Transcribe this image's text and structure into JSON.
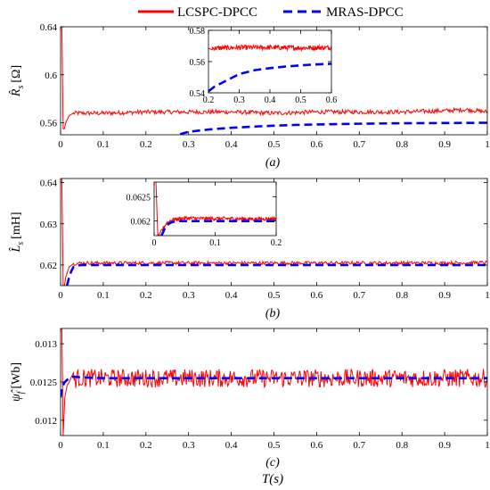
{
  "legend": {
    "entries": [
      {
        "label": "LCSPC-DPCC",
        "color": "#ff0000",
        "style": "solid"
      },
      {
        "label": "MRAS-DPCC",
        "color": "#0000ff",
        "style": "dashed"
      }
    ]
  },
  "xlabel": "T(s)",
  "chart_data": [
    {
      "type": "line",
      "panel": "(a)",
      "ylabel": "R̂s [Ω]",
      "ylabel_base": "R",
      "ylabel_sub": "s",
      "ylabel_unit": "[Ω]",
      "xlim": [
        0,
        1
      ],
      "ylim": [
        0.55,
        0.64
      ],
      "xticks": [
        0,
        0.1,
        0.2,
        0.3,
        0.4,
        0.5,
        0.6,
        0.7,
        0.8,
        0.9,
        1
      ],
      "xticklabels": [
        "0",
        "0.1",
        "0.2",
        "0.3",
        "0.4",
        "0.5",
        "0.6",
        "0.7",
        "0.8",
        "0.9",
        "1"
      ],
      "yticks": [
        0.56,
        0.6,
        0.64
      ],
      "yticklabels": [
        "0.56",
        "0.6",
        "0.64"
      ],
      "series": [
        {
          "name": "LCSPC-DPCC",
          "x": [
            0,
            0.003,
            0.006,
            0.009,
            0.012,
            0.02,
            0.03,
            0.05,
            0.1,
            0.2,
            0.3,
            0.4,
            0.5,
            0.6,
            0.7,
            0.8,
            0.9,
            0.95,
            1.0
          ],
          "y": [
            0.64,
            0.64,
            0.555,
            0.555,
            0.56,
            0.566,
            0.568,
            0.568,
            0.568,
            0.569,
            0.569,
            0.569,
            0.568,
            0.569,
            0.569,
            0.569,
            0.57,
            0.571,
            0.569
          ],
          "noise": 0.0018
        },
        {
          "name": "MRAS-DPCC",
          "x": [
            0.28,
            0.3,
            0.35,
            0.4,
            0.45,
            0.5,
            0.55,
            0.6,
            0.7,
            0.8,
            0.9,
            1.0
          ],
          "y": [
            0.5505,
            0.5525,
            0.5545,
            0.5558,
            0.5568,
            0.5576,
            0.5582,
            0.5586,
            0.5592,
            0.5596,
            0.5598,
            0.56
          ]
        }
      ],
      "inset": {
        "xlim": [
          0.2,
          0.6
        ],
        "ylim": [
          0.54,
          0.58
        ],
        "xticks": [
          0.2,
          0.3,
          0.4,
          0.5,
          0.6
        ],
        "xticklabels": [
          "0.2",
          "0.3",
          "0.4",
          "0.5",
          "0.6"
        ],
        "yticks": [
          0.54,
          0.56,
          0.58
        ],
        "yticklabels": [
          "0.54",
          "0.56",
          "0.58"
        ],
        "series": [
          {
            "name": "LCSPC-DPCC",
            "x": [
              0.2,
              0.3,
              0.4,
              0.5,
              0.6
            ],
            "y": [
              0.5685,
              0.569,
              0.569,
              0.5688,
              0.569
            ],
            "noise": 0.0016
          },
          {
            "name": "MRAS-DPCC",
            "x": [
              0.2,
              0.22,
              0.25,
              0.28,
              0.3,
              0.35,
              0.4,
              0.45,
              0.5,
              0.55,
              0.6
            ],
            "y": [
              0.541,
              0.544,
              0.547,
              0.55,
              0.552,
              0.5545,
              0.5558,
              0.5568,
              0.5576,
              0.5582,
              0.5586
            ]
          }
        ]
      }
    },
    {
      "type": "line",
      "panel": "(b)",
      "ylabel": "L̂s [mH]",
      "ylabel_base": "L",
      "ylabel_sub": "s",
      "ylabel_unit": "[mH]",
      "xlim": [
        0,
        1
      ],
      "ylim": [
        0.615,
        0.641
      ],
      "xticks": [
        0,
        0.1,
        0.2,
        0.3,
        0.4,
        0.5,
        0.6,
        0.7,
        0.8,
        0.9,
        1
      ],
      "xticklabels": [
        "0",
        "0.1",
        "0.2",
        "0.3",
        "0.4",
        "0.5",
        "0.6",
        "0.7",
        "0.8",
        "0.9",
        "1"
      ],
      "yticks": [
        0.62,
        0.63,
        0.64
      ],
      "yticklabels": [
        "0.62",
        "0.63",
        "0.64"
      ],
      "series": [
        {
          "name": "LCSPC-DPCC",
          "x": [
            0,
            0.003,
            0.006,
            0.009,
            0.012,
            0.02,
            0.03,
            0.05,
            0.1,
            0.2,
            0.3,
            0.4,
            0.5,
            0.6,
            0.7,
            0.8,
            0.9,
            1.0
          ],
          "y": [
            0.641,
            0.641,
            0.615,
            0.615,
            0.617,
            0.6195,
            0.6203,
            0.6205,
            0.6205,
            0.6205,
            0.6205,
            0.6205,
            0.6205,
            0.6205,
            0.6205,
            0.6205,
            0.6205,
            0.6206
          ],
          "noise": 0.0004
        },
        {
          "name": "MRAS-DPCC",
          "x": [
            0.015,
            0.02,
            0.025,
            0.03,
            0.04,
            0.05,
            0.1,
            0.2,
            0.3,
            0.4,
            0.5,
            0.6,
            0.7,
            0.8,
            0.9,
            1.0
          ],
          "y": [
            0.615,
            0.617,
            0.6185,
            0.6195,
            0.6199,
            0.62,
            0.62,
            0.62,
            0.62,
            0.62,
            0.62,
            0.62,
            0.62,
            0.62,
            0.62,
            0.62
          ]
        }
      ],
      "inset": {
        "xlim": [
          0,
          0.2
        ],
        "ylim": [
          0.0617,
          0.0628
        ],
        "xticks": [
          0,
          0.1,
          0.2
        ],
        "xticklabels": [
          "0",
          "0.1",
          "0.2"
        ],
        "yticks": [
          0.062,
          0.0625
        ],
        "yticklabels": [
          "0.062",
          "0.0625"
        ],
        "series": [
          {
            "name": "LCSPC-DPCC",
            "x": [
              0,
              0.003,
              0.006,
              0.009,
              0.012,
              0.02,
              0.03,
              0.05,
              0.08,
              0.12,
              0.16,
              0.2
            ],
            "y": [
              0.0628,
              0.0628,
              0.0617,
              0.0617,
              0.0618,
              0.06195,
              0.06203,
              0.06206,
              0.06205,
              0.06205,
              0.06204,
              0.06205
            ],
            "noise": 4e-05
          },
          {
            "name": "MRAS-DPCC",
            "x": [
              0.012,
              0.015,
              0.018,
              0.02,
              0.025,
              0.03,
              0.04,
              0.06,
              0.1,
              0.15,
              0.2
            ],
            "y": [
              0.0617,
              0.06178,
              0.06186,
              0.0619,
              0.06195,
              0.06198,
              0.062,
              0.062,
              0.062,
              0.062,
              0.062
            ]
          }
        ]
      }
    },
    {
      "type": "line",
      "panel": "(c)",
      "ylabel": "ψ̂f [Wb]",
      "ylabel_base": "ψ",
      "ylabel_sub": "f",
      "ylabel_unit": "[Wb]",
      "xlim": [
        0,
        1
      ],
      "ylim": [
        0.0118,
        0.0132
      ],
      "xticks": [
        0,
        0.1,
        0.2,
        0.3,
        0.4,
        0.5,
        0.6,
        0.7,
        0.8,
        0.9,
        1
      ],
      "xticklabels": [
        "0",
        "0.1",
        "0.2",
        "0.3",
        "0.4",
        "0.5",
        "0.6",
        "0.7",
        "0.8",
        "0.9",
        "1"
      ],
      "yticks": [
        0.012,
        0.0125,
        0.013
      ],
      "yticklabels": [
        "0.012",
        "0.0125",
        "0.013"
      ],
      "series": [
        {
          "name": "LCSPC-DPCC",
          "x": [
            0,
            0.003,
            0.006,
            0.01,
            0.015,
            0.02,
            0.04,
            0.1,
            0.3,
            0.5,
            0.7,
            0.9,
            1.0
          ],
          "y": [
            0.0132,
            0.0132,
            0.0118,
            0.0123,
            0.01245,
            0.0125,
            0.01255,
            0.01255,
            0.01255,
            0.01255,
            0.01255,
            0.01255,
            0.01255
          ],
          "noise": 0.00012
        },
        {
          "name": "MRAS-DPCC",
          "x": [
            0,
            0.005,
            0.01,
            0.02,
            0.03,
            0.05,
            0.1,
            0.3,
            0.5,
            0.7,
            0.9,
            1.0
          ],
          "y": [
            0.0123,
            0.01245,
            0.0125,
            0.01255,
            0.01257,
            0.01256,
            0.01255,
            0.01255,
            0.01255,
            0.01255,
            0.01255,
            0.01255
          ]
        }
      ]
    }
  ]
}
